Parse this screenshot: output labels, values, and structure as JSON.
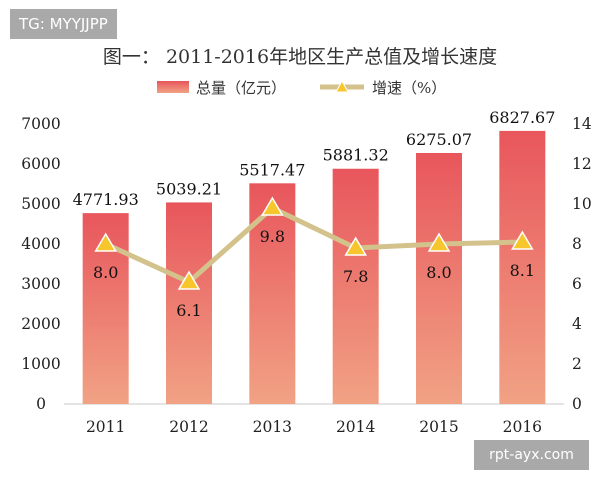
{
  "tag": "TG: MYYJJPP",
  "watermark": "rpt-ayx.com",
  "chart_data": {
    "type": "bar",
    "title": "图一：  2011-2016年地区生产总值及增长速度",
    "categories": [
      "2011",
      "2012",
      "2013",
      "2014",
      "2015",
      "2016"
    ],
    "series": [
      {
        "name": "总量（亿元）",
        "type": "bar",
        "axis": "left",
        "values": [
          4771.93,
          5039.21,
          5517.47,
          5881.32,
          6275.07,
          6827.67
        ],
        "labels": [
          "4771.93",
          "5039.21",
          "5517.47",
          "5881.32",
          "6275.07",
          "6827.67"
        ],
        "color_top": "#e8565c",
        "color_bottom": "#f1a285"
      },
      {
        "name": "增速（%）",
        "type": "line",
        "axis": "right",
        "values": [
          8.0,
          6.1,
          9.8,
          7.8,
          8.0,
          8.1
        ],
        "labels": [
          "8.0",
          "6.1",
          "9.8",
          "7.8",
          "8.0",
          "8.1"
        ],
        "line_color": "#d3c28c",
        "marker_color": "#f7c52c",
        "marker": "triangle"
      }
    ],
    "y_left": {
      "range": [
        0,
        7000
      ],
      "ticks": [
        "0",
        "1000",
        "2000",
        "3000",
        "4000",
        "5000",
        "6000",
        "7000"
      ]
    },
    "y_right": {
      "range": [
        0,
        14
      ],
      "ticks": [
        "0",
        "2",
        "4",
        "6",
        "8",
        "10",
        "12",
        "14"
      ]
    },
    "grid": false,
    "legend_position": "top-center"
  }
}
